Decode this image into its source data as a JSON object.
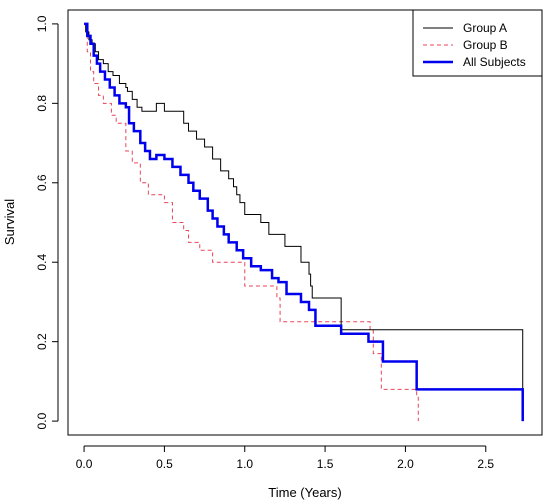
{
  "chart_data": {
    "type": "line",
    "title": "",
    "xlabel": "Time (Years)",
    "ylabel": "Survival",
    "xlim": [
      -0.1,
      2.85
    ],
    "ylim": [
      -0.035,
      1.035
    ],
    "x_ticks": [
      0.0,
      0.5,
      1.0,
      1.5,
      2.0,
      2.5
    ],
    "x_tick_labels": [
      "0.0",
      "0.5",
      "1.0",
      "1.5",
      "2.0",
      "2.5"
    ],
    "y_ticks": [
      0.0,
      0.2,
      0.4,
      0.6,
      0.8,
      1.0
    ],
    "y_tick_labels": [
      "0.0",
      "0.2",
      "0.4",
      "0.6",
      "0.8",
      "1.0"
    ],
    "grid": false,
    "legend_position": "top-right",
    "step": true,
    "series": [
      {
        "name": "Group A",
        "color": "#000000",
        "line_style": "solid",
        "x": [
          0.0,
          0.01,
          0.03,
          0.05,
          0.07,
          0.09,
          0.12,
          0.15,
          0.18,
          0.22,
          0.26,
          0.27,
          0.3,
          0.33,
          0.36,
          0.45,
          0.5,
          0.62,
          0.65,
          0.7,
          0.75,
          0.8,
          0.85,
          0.9,
          0.93,
          0.95,
          0.97,
          1.0,
          1.1,
          1.15,
          1.25,
          1.35,
          1.4,
          1.41,
          1.42,
          1.6,
          2.73
        ],
        "y": [
          1.0,
          0.98,
          0.96,
          0.95,
          0.93,
          0.91,
          0.9,
          0.88,
          0.87,
          0.85,
          0.84,
          0.83,
          0.81,
          0.79,
          0.78,
          0.8,
          0.78,
          0.75,
          0.73,
          0.71,
          0.69,
          0.66,
          0.63,
          0.61,
          0.59,
          0.57,
          0.55,
          0.52,
          0.5,
          0.47,
          0.44,
          0.4,
          0.37,
          0.34,
          0.31,
          0.23,
          0.0
        ]
      },
      {
        "name": "Group B",
        "color": "#e8465a",
        "line_style": "dashed",
        "x": [
          0.0,
          0.02,
          0.04,
          0.06,
          0.09,
          0.12,
          0.17,
          0.2,
          0.26,
          0.3,
          0.35,
          0.4,
          0.5,
          0.55,
          0.62,
          0.65,
          0.72,
          0.8,
          1.0,
          1.2,
          1.22,
          1.6,
          1.78,
          1.8,
          1.85,
          2.07,
          2.08
        ],
        "y": [
          1.0,
          0.93,
          0.88,
          0.85,
          0.82,
          0.8,
          0.77,
          0.75,
          0.68,
          0.65,
          0.6,
          0.57,
          0.55,
          0.5,
          0.48,
          0.45,
          0.43,
          0.4,
          0.34,
          0.31,
          0.25,
          0.25,
          0.23,
          0.17,
          0.08,
          0.06,
          0.0
        ]
      },
      {
        "name": "All Subjects",
        "color": "#0000ee",
        "line_style": "solid",
        "x": [
          0.0,
          0.02,
          0.04,
          0.06,
          0.08,
          0.1,
          0.13,
          0.16,
          0.19,
          0.22,
          0.26,
          0.28,
          0.31,
          0.35,
          0.38,
          0.41,
          0.45,
          0.5,
          0.55,
          0.6,
          0.65,
          0.68,
          0.72,
          0.77,
          0.8,
          0.83,
          0.87,
          0.9,
          0.95,
          0.99,
          1.04,
          1.1,
          1.17,
          1.21,
          1.26,
          1.35,
          1.4,
          1.44,
          1.6,
          1.77,
          1.86,
          2.07,
          2.73
        ],
        "y": [
          1.0,
          0.97,
          0.95,
          0.92,
          0.9,
          0.88,
          0.86,
          0.84,
          0.82,
          0.8,
          0.79,
          0.75,
          0.73,
          0.7,
          0.68,
          0.66,
          0.67,
          0.66,
          0.64,
          0.62,
          0.6,
          0.58,
          0.56,
          0.53,
          0.51,
          0.49,
          0.47,
          0.45,
          0.43,
          0.41,
          0.39,
          0.38,
          0.36,
          0.35,
          0.32,
          0.3,
          0.28,
          0.24,
          0.22,
          0.2,
          0.15,
          0.08,
          0.0
        ]
      }
    ]
  }
}
